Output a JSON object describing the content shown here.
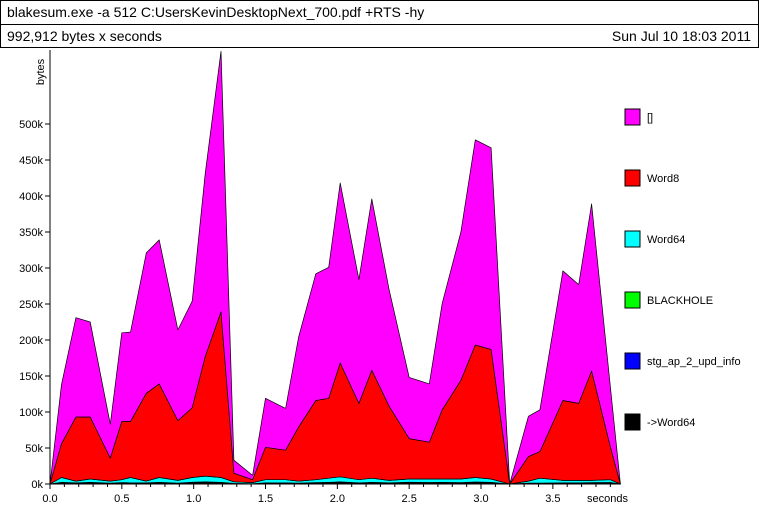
{
  "header": {
    "title": "blakesum.exe -a 512 C:UsersKevinDesktopNext_700.pdf +RTS -hy",
    "subtitle": "992,912 bytes x seconds",
    "date": "Sun Jul 10 18:03 2011"
  },
  "chart_data": {
    "type": "area",
    "stacked": true,
    "ylabel": "bytes",
    "xlabel": "seconds",
    "xlim": [
      0,
      3.95
    ],
    "ylim": [
      0,
      600000
    ],
    "x_ticks": [
      0.0,
      0.5,
      1.0,
      1.5,
      2.0,
      2.5,
      3.0,
      3.5
    ],
    "x_tick_labels": [
      "0.0",
      "0.5",
      "1.0",
      "1.5",
      "2.0",
      "2.5",
      "3.0",
      "3.5"
    ],
    "y_ticks": [
      0,
      50000,
      100000,
      150000,
      200000,
      250000,
      300000,
      350000,
      400000,
      450000,
      500000
    ],
    "y_tick_labels": [
      "0k",
      "50k",
      "100k",
      "150k",
      "200k",
      "250k",
      "300k",
      "350k",
      "400k",
      "450k",
      "500k"
    ],
    "x": [
      0.0,
      0.08,
      0.18,
      0.28,
      0.42,
      0.5,
      0.56,
      0.67,
      0.76,
      0.89,
      0.99,
      1.08,
      1.19,
      1.28,
      1.41,
      1.5,
      1.64,
      1.73,
      1.85,
      1.94,
      2.02,
      2.15,
      2.24,
      2.36,
      2.5,
      2.64,
      2.73,
      2.86,
      2.96,
      3.07,
      3.2,
      3.33,
      3.41,
      3.57,
      3.68,
      3.77,
      3.9,
      3.97
    ],
    "series": [
      {
        "name": "->Word64",
        "color": "#000000",
        "values": [
          0,
          1200,
          800,
          1200,
          600,
          1000,
          900,
          800,
          1200,
          700,
          1300,
          1500,
          1200,
          500,
          200,
          800,
          900,
          600,
          1000,
          1200,
          1500,
          900,
          1200,
          800,
          1300,
          1100,
          1200,
          1000,
          1400,
          1200,
          0,
          600,
          700,
          900,
          800,
          1000,
          1100,
          0
        ]
      },
      {
        "name": "stg_ap_2_upd_info",
        "color": "#0000ff",
        "values": [
          0,
          600,
          400,
          600,
          300,
          500,
          400,
          400,
          600,
          300,
          600,
          700,
          600,
          200,
          100,
          400,
          400,
          300,
          500,
          600,
          700,
          400,
          600,
          400,
          600,
          500,
          600,
          500,
          700,
          600,
          0,
          300,
          300,
          400,
          400,
          500,
          500,
          0
        ]
      },
      {
        "name": "BLACKHOLE",
        "color": "#00ff00",
        "values": [
          0,
          600,
          400,
          600,
          300,
          500,
          400,
          400,
          600,
          300,
          600,
          700,
          600,
          200,
          100,
          400,
          400,
          300,
          500,
          600,
          700,
          400,
          600,
          400,
          600,
          500,
          600,
          500,
          700,
          600,
          0,
          300,
          300,
          400,
          400,
          500,
          500,
          0
        ]
      },
      {
        "name": "Word64",
        "color": "#00ffff",
        "values": [
          0,
          6600,
          2400,
          4600,
          2800,
          4000,
          7300,
          2400,
          6600,
          3700,
          6500,
          8100,
          6600,
          2100,
          1600,
          4400,
          4300,
          2800,
          4000,
          5600,
          7100,
          4300,
          5600,
          3400,
          4500,
          4900,
          4600,
          5000,
          6200,
          4600,
          0,
          2800,
          6700,
          3300,
          3400,
          3000,
          3900,
          0
        ]
      },
      {
        "name": "Word8",
        "color": "#ff0000",
        "values": [
          0,
          47000,
          89000,
          86000,
          32000,
          81000,
          78000,
          122000,
          130000,
          83000,
          97000,
          166000,
          230000,
          12000,
          4000,
          45000,
          41000,
          75000,
          110000,
          111000,
          158000,
          106000,
          150000,
          103000,
          56000,
          51000,
          96000,
          137000,
          184000,
          180000,
          0,
          34000,
          37000,
          111000,
          107000,
          152000,
          46000,
          0
        ]
      },
      {
        "name": "[]",
        "color": "#ff00ff",
        "values": [
          0,
          82000,
          138000,
          132000,
          47000,
          123000,
          124000,
          195000,
          200000,
          126000,
          148000,
          254000,
          362000,
          18000,
          6000,
          68000,
          58000,
          125000,
          176000,
          182000,
          250000,
          172000,
          238000,
          162000,
          85000,
          81000,
          148000,
          206000,
          285000,
          280000,
          0,
          56000,
          58000,
          180000,
          165000,
          232000,
          84000,
          0
        ]
      }
    ]
  },
  "legend": {
    "placement": "right",
    "items": [
      {
        "label": "[]",
        "color": "#ff00ff"
      },
      {
        "label": "Word8",
        "color": "#ff0000"
      },
      {
        "label": "Word64",
        "color": "#00ffff"
      },
      {
        "label": "BLACKHOLE",
        "color": "#00ff00"
      },
      {
        "label": "stg_ap_2_upd_info",
        "color": "#0000ff"
      },
      {
        "label": "->Word64",
        "color": "#000000"
      }
    ]
  }
}
